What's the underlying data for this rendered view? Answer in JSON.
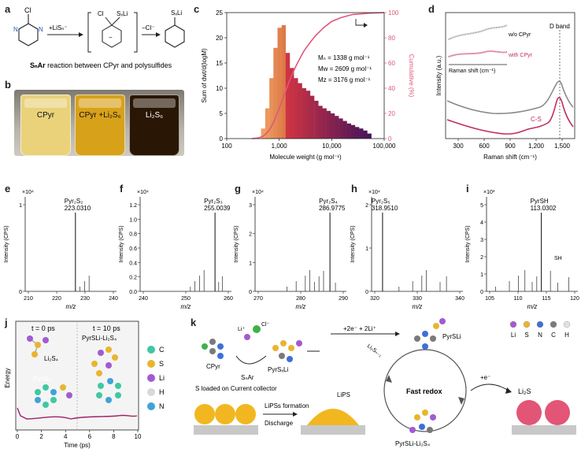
{
  "panels": {
    "a": "a",
    "b": "b",
    "c": "c",
    "d": "d",
    "e": "e",
    "f": "f",
    "g": "g",
    "h": "h",
    "i": "i",
    "j": "j",
    "k": "k"
  },
  "a": {
    "reagent1": "+LiSₙ⁻",
    "reagent2": "−Cl⁻",
    "caption_prefix": "SₙAr",
    "caption_rest": " reaction between CPyr and polysulfides",
    "atom_cl": "Cl",
    "atom_sxli": "SₓLi",
    "atom_n": "N",
    "atom_minus": "−"
  },
  "b": {
    "vials": [
      {
        "label": "CPyr",
        "color": "#e9d27a"
      },
      {
        "label": "CPyr +Li₂S₆",
        "color": "#d8a11a"
      },
      {
        "label": "Li₂S₆",
        "color": "#2a1604"
      }
    ]
  },
  "c": {
    "ylabel_left": "Sum of dwt/d(logM)",
    "ylabel_right": "Cumulative (%)",
    "xlabel": "Molecule weight (g mol⁻¹)",
    "mn": "Mₙ = 1338 g mol⁻¹",
    "mw": "Mw = 2609 g mol⁻¹",
    "mz": "Mz = 3176 g mol⁻¹",
    "yticks": [
      "0",
      "5",
      "10",
      "15",
      "20",
      "25"
    ],
    "rticks": [
      "0",
      "20",
      "40",
      "60",
      "80",
      "100"
    ],
    "xticks": [
      "100",
      "1,000",
      "10,000",
      "100,000"
    ]
  },
  "chart_data": [
    {
      "type": "bar",
      "title": "",
      "xlabel": "Molecule weight (g mol⁻¹)",
      "ylabel": "Sum of dwt/d(logM)",
      "y2label": "Cumulative (%)",
      "xscale": "log",
      "xlim": [
        100,
        100000
      ],
      "ylim": [
        0,
        25
      ],
      "y2lim": [
        0,
        100
      ],
      "x": [
        500,
        600,
        720,
        860,
        1030,
        1230,
        1470,
        1760,
        2100,
        2520,
        3010,
        3600,
        4300,
        5150,
        6160,
        7370,
        8810,
        10540,
        12600,
        15070,
        18020,
        21550,
        25770,
        30820,
        36860,
        44080,
        52720
      ],
      "values": [
        2,
        6,
        12,
        18,
        22,
        22.5,
        17,
        14,
        12,
        11,
        10,
        9.5,
        8.5,
        7.5,
        6.5,
        6,
        5.5,
        5,
        4.5,
        4,
        3.5,
        3,
        2.7,
        2.3,
        2,
        1.6,
        1
      ],
      "cumulative": {
        "x": [
          300,
          400,
          500,
          600,
          700,
          800,
          1000,
          1300,
          1600,
          2000,
          2500,
          3000,
          4000,
          5000,
          7000,
          10000,
          15000,
          25000,
          50000,
          100000
        ],
        "y": [
          0,
          0.5,
          2,
          5,
          9,
          14,
          24,
          37,
          47,
          56,
          64,
          70,
          77,
          82,
          88,
          93,
          96,
          98.5,
          99.5,
          100
        ]
      }
    },
    {
      "type": "line",
      "title": "",
      "xlabel": "Raman shift (cm⁻¹)",
      "ylabel": "Intensity (a.u.)",
      "xlim": [
        150,
        1550
      ],
      "series": [
        {
          "name": "w/o CPyr",
          "color": "#8a8a8a"
        },
        {
          "name": "with CPyr",
          "color": "#c42b66"
        }
      ],
      "annotations": [
        "D band",
        "C-S"
      ]
    }
  ],
  "d": {
    "ylabel": "Intensity (a.u.)",
    "xlabel": "Raman shift (cm⁻¹)",
    "inset_xlabel": "Raman shift (cm⁻¹)",
    "legend_gray": "w/o CPyr",
    "legend_pink": "with CPyr",
    "dband": "D band",
    "cs": "C-S",
    "xticks": [
      "300",
      "600",
      "900",
      "1,200",
      "1,500"
    ]
  },
  "ms": {
    "ylabel": "Intensity (CPS)",
    "xlabel": "m/z",
    "e": {
      "scale": "×10⁴",
      "name": "Pyr₂S₂",
      "mass": "223.0310",
      "yticks": [
        "0",
        "1"
      ],
      "xticks": [
        "210",
        "220",
        "230",
        "240"
      ]
    },
    "f": {
      "scale": "×10⁴",
      "name": "Pyr₂S₃",
      "mass": "255.0039",
      "yticks": [
        "0.0",
        "0.2",
        "0.4",
        "0.6",
        "0.8",
        "1.0",
        "1.2"
      ],
      "xticks": [
        "240",
        "250",
        "260"
      ]
    },
    "g": {
      "scale": "×10⁴",
      "name": "Pyr₂S₄",
      "mass": "286.9775",
      "yticks": [
        "0",
        "1",
        "2",
        "3"
      ],
      "xticks": [
        "270",
        "280",
        "290"
      ]
    },
    "h": {
      "scale": "×10⁴",
      "name": "Pyr₂S₅",
      "mass": "318.9510",
      "yticks": [
        "0",
        "1",
        "2"
      ],
      "xticks": [
        "320",
        "330",
        "340"
      ]
    },
    "i": {
      "scale": "×10³",
      "name": "PyrSH",
      "mass": "113.0302",
      "yticks": [
        "0",
        "1",
        "2",
        "3",
        "4",
        "5"
      ],
      "xticks": [
        "105",
        "110",
        "115",
        "120"
      ],
      "sh": "SH"
    }
  },
  "j": {
    "t0": "t = 0 ps",
    "t10": "t = 10 ps",
    "li2s4": "Li₂S₄",
    "pyrsli": "PyrSLi",
    "complex": "PyrSLi-Li₂S₄",
    "ylabel": "Energy",
    "xlabel": "Time (ps)",
    "xticks": [
      "0",
      "2",
      "4",
      "6",
      "8",
      "10"
    ],
    "legend": [
      {
        "label": "C",
        "color": "#3fc8a4"
      },
      {
        "label": "S",
        "color": "#e8b530"
      },
      {
        "label": "Li",
        "color": "#a35ad1"
      },
      {
        "label": "H",
        "color": "#d8d8d8"
      },
      {
        "label": "N",
        "color": "#3fa3d8"
      }
    ]
  },
  "k": {
    "s_loaded": "S loaded on Current collector",
    "lipss_formation": "LiPSs formation",
    "discharge": "Discharge",
    "lips": "LiPS",
    "cpyr": "CPyr",
    "snar": "SₙAr",
    "pyrsxli": "PyrSₓLi",
    "li_plus": "Li⁺",
    "cl_minus": "Cl⁻",
    "electrons": "+2e⁻ + 2Li⁺",
    "li2sn1": "Li₂Sₙ₋₁",
    "pyrsli": "PyrSLi",
    "fast_redox": "Fast redox",
    "plus_e": "+e⁻",
    "li2s": "Li₂S",
    "complex": "PyrSLi-Li₂S₄",
    "legend": [
      {
        "label": "Li",
        "color": "#a35ad1"
      },
      {
        "label": "S",
        "color": "#e8b530"
      },
      {
        "label": "N",
        "color": "#3f6fd8"
      },
      {
        "label": "C",
        "color": "#7a7a7a"
      },
      {
        "label": "H",
        "color": "#e0e0e0"
      }
    ]
  }
}
